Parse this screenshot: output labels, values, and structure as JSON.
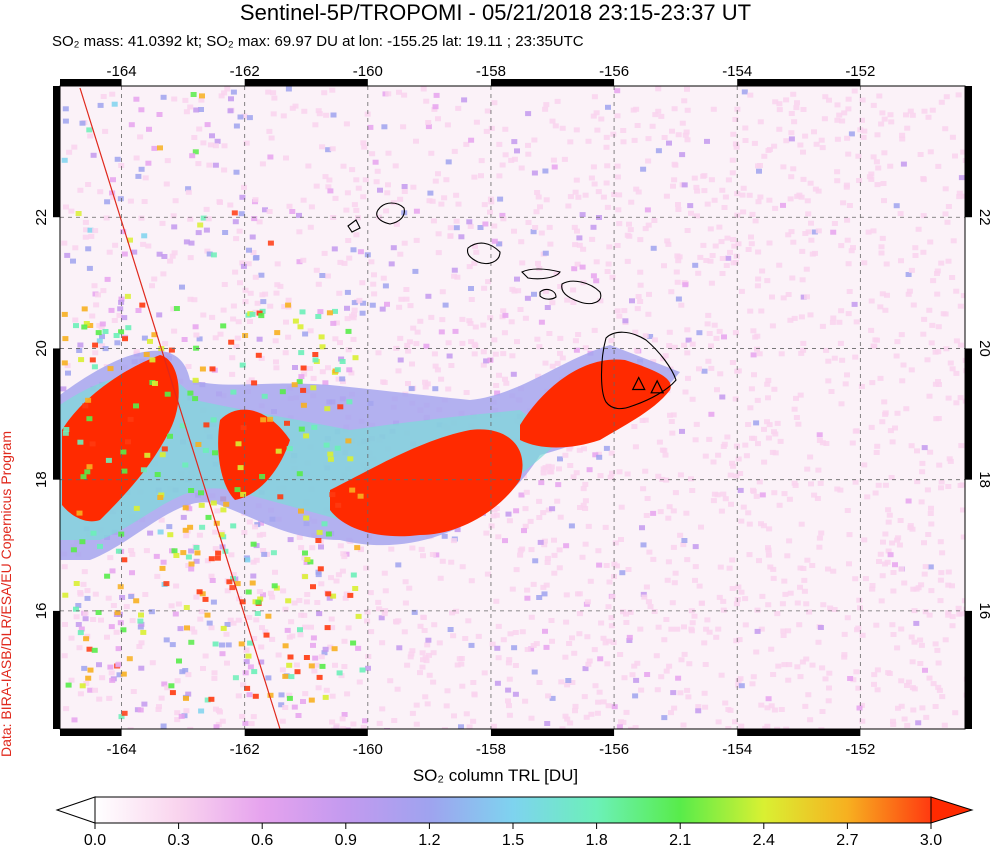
{
  "header": {
    "title": "Sentinel-5P/TROPOMI - 05/21/2018 23:15-23:37 UT",
    "subtitle": "SO₂ mass: 41.0392 kt; SO₂ max: 69.97 DU at lon: -155.25 lat: 19.11 ; 23:35UTC"
  },
  "credit": "Data: BIRA-IASB/DLR/ESA/EU Copernicus Program",
  "map": {
    "lon_range": [
      -165,
      -150.3
    ],
    "lat_range": [
      14.2,
      24
    ],
    "lon_ticks": [
      "-164",
      "-162",
      "-160",
      "-158",
      "-156",
      "-154",
      "-152"
    ],
    "lat_ticks": [
      "22",
      "20",
      "18",
      "16"
    ],
    "volcano_markers": [
      {
        "lon": -155.6,
        "lat": 19.45
      },
      {
        "lon": -155.3,
        "lat": 19.4
      }
    ],
    "max_point": {
      "lon": -155.25,
      "lat": 19.11,
      "value": 69.97
    },
    "plume_color": "#ff2a00",
    "coast_color": "#000000",
    "swath_edge_color": "#e0281c"
  },
  "colorbar": {
    "label": "SO₂ column TRL [DU]",
    "ticks": [
      "0.0",
      "0.3",
      "0.6",
      "0.9",
      "1.2",
      "1.5",
      "1.8",
      "2.1",
      "2.4",
      "2.7",
      "3.0"
    ],
    "colors": [
      "#ffffff",
      "#f9d4ee",
      "#e6a3ee",
      "#c39aef",
      "#9fa3ef",
      "#7ed3ef",
      "#6cf0b8",
      "#58ec4a",
      "#d9f032",
      "#f7b020",
      "#ff3a10"
    ]
  }
}
